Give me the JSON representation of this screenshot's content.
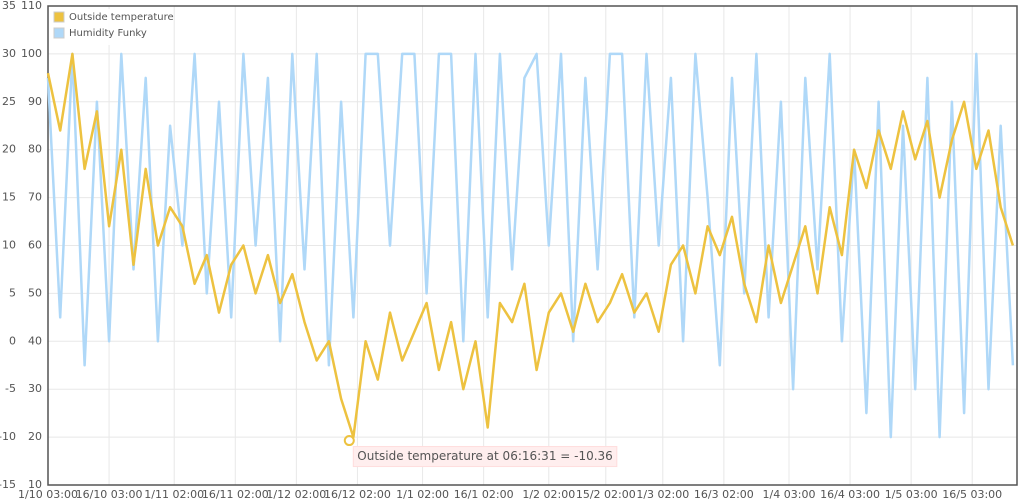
{
  "chart_data": {
    "type": "line",
    "xlim": [
      0,
      238
    ],
    "xticks": [
      {
        "value": 0,
        "label": "1/10 03:00"
      },
      {
        "value": 15,
        "label": "16/10 03:00"
      },
      {
        "value": 31,
        "label": "1/11 02:00"
      },
      {
        "value": 46,
        "label": "16/11 02:00"
      },
      {
        "value": 61,
        "label": "1/12 02:00"
      },
      {
        "value": 76,
        "label": "16/12 02:00"
      },
      {
        "value": 92,
        "label": "1/1 02:00"
      },
      {
        "value": 107,
        "label": "16/1 02:00"
      },
      {
        "value": 123,
        "label": "1/2 02:00"
      },
      {
        "value": 137,
        "label": "15/2 02:00"
      },
      {
        "value": 151,
        "label": "1/3 02:00"
      },
      {
        "value": 166,
        "label": "16/3 02:00"
      },
      {
        "value": 182,
        "label": "1/4 03:00"
      },
      {
        "value": 197,
        "label": "16/4 03:00"
      },
      {
        "value": 212,
        "label": "1/5 03:00"
      },
      {
        "value": 227,
        "label": "16/5 03:00"
      }
    ],
    "ylim": [
      -15,
      35
    ],
    "yticks": [
      -15,
      -10,
      -5,
      0,
      5,
      10,
      15,
      20,
      25,
      30,
      35
    ],
    "y2lim": [
      10,
      110
    ],
    "y2ticks": [
      10,
      20,
      30,
      40,
      50,
      60,
      70,
      80,
      90,
      100,
      110
    ],
    "grid": true,
    "legend": "top-left",
    "x": [
      0,
      3,
      6,
      9,
      12,
      15,
      18,
      21,
      24,
      27,
      30,
      33,
      36,
      39,
      42,
      45,
      48,
      51,
      54,
      57,
      60,
      63,
      66,
      69,
      72,
      75,
      78,
      81,
      84,
      87,
      90,
      93,
      96,
      99,
      102,
      105,
      108,
      111,
      114,
      117,
      120,
      123,
      126,
      129,
      132,
      135,
      138,
      141,
      144,
      147,
      150,
      153,
      156,
      159,
      162,
      165,
      168,
      171,
      174,
      177,
      180,
      183,
      186,
      189,
      192,
      195,
      198,
      201,
      204,
      207,
      210,
      213,
      216,
      219,
      222,
      225,
      228,
      231,
      234,
      237
    ],
    "series": [
      {
        "name": "Outside temperature",
        "color": "#edc240",
        "values": [
          28,
          22,
          30,
          18,
          24,
          12,
          20,
          8,
          18,
          10,
          14,
          12,
          6,
          9,
          3,
          8,
          10,
          5,
          9,
          4,
          7,
          2,
          -2,
          0,
          -6,
          -10,
          0,
          -4,
          3,
          -2,
          1,
          4,
          -3,
          2,
          -5,
          0,
          -9,
          4,
          2,
          6,
          -3,
          3,
          5,
          1,
          6,
          2,
          4,
          7,
          3,
          5,
          1,
          8,
          10,
          5,
          12,
          9,
          13,
          6,
          2,
          10,
          4,
          8,
          12,
          5,
          14,
          9,
          20,
          16,
          22,
          18,
          24,
          19,
          23,
          15,
          21,
          25,
          18,
          22,
          14,
          10
        ]
      },
      {
        "name": "Humidity Funky",
        "color": "#afd8f8",
        "axis": "y2",
        "values": [
          95,
          45,
          100,
          35,
          90,
          40,
          100,
          55,
          95,
          40,
          85,
          60,
          100,
          50,
          90,
          45,
          100,
          60,
          95,
          40,
          100,
          55,
          100,
          35,
          90,
          45,
          100,
          100,
          60,
          100,
          100,
          50,
          100,
          100,
          40,
          100,
          45,
          100,
          55,
          95,
          100,
          60,
          100,
          40,
          95,
          55,
          100,
          100,
          45,
          100,
          60,
          95,
          40,
          100,
          70,
          35,
          95,
          50,
          100,
          45,
          90,
          30,
          95,
          55,
          100,
          40,
          80,
          25,
          90,
          20,
          85,
          30,
          95,
          20,
          90,
          25,
          100,
          30,
          85,
          35
        ]
      }
    ],
    "annotations": [
      {
        "text": "Outside temperature at 06:16:31 = -10.36",
        "x": 74,
        "y": -10.36
      }
    ]
  }
}
